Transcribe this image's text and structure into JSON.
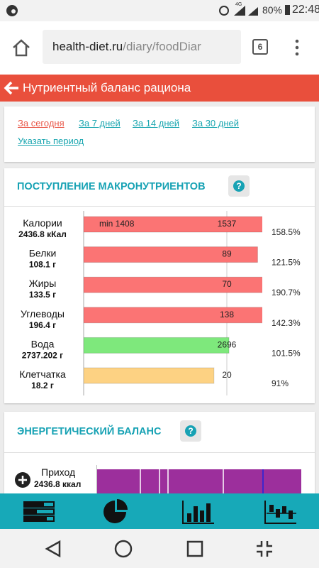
{
  "status_bar": {
    "network": "4G",
    "battery": "80%",
    "time": "22:48"
  },
  "browser": {
    "url_host": "health-diet.ru",
    "url_path": "/diary/foodDiar",
    "tab_count": "6"
  },
  "header": {
    "title": "Нутриентный баланс рациона"
  },
  "periods": [
    "За сегодня",
    "За 7 дней",
    "За 14 дней",
    "За 30 дней",
    "Указать период"
  ],
  "macros": {
    "title": "ПОСТУПЛЕНИЕ МАКРОНУТРИЕНТОВ",
    "help": "?",
    "rows": [
      {
        "name": "Калории",
        "amount": "2436.8 кКал",
        "min_label": "min 1408",
        "norm_label": "1537",
        "percent": 158.5,
        "percent_label": "158.5%",
        "color": "#fb7474"
      },
      {
        "name": "Белки",
        "amount": "108.1 г",
        "norm_label": "89",
        "percent": 121.5,
        "percent_label": "121.5%",
        "color": "#fb7474"
      },
      {
        "name": "Жиры",
        "amount": "133.5 г",
        "norm_label": "70",
        "percent": 190.7,
        "percent_label": "190.7%",
        "color": "#fb7474"
      },
      {
        "name": "Углеводы",
        "amount": "196.4 г",
        "norm_label": "138",
        "percent": 142.3,
        "percent_label": "142.3%",
        "color": "#fb7474"
      },
      {
        "name": "Вода",
        "amount": "2737.202 г",
        "norm_label": "2696",
        "percent": 101.5,
        "percent_label": "101.5%",
        "color": "#7ee87c"
      },
      {
        "name": "Клетчатка",
        "amount": "18.2 г",
        "norm_label": "20",
        "percent": 91,
        "percent_label": "91%",
        "color": "#fdd283"
      }
    ]
  },
  "energy": {
    "title": "ЭНЕРГЕТИЧЕСКИЙ БАЛАНС",
    "help": "?",
    "rows": [
      {
        "name": "Приход",
        "amount": "2436.8 ккал"
      }
    ]
  }
}
